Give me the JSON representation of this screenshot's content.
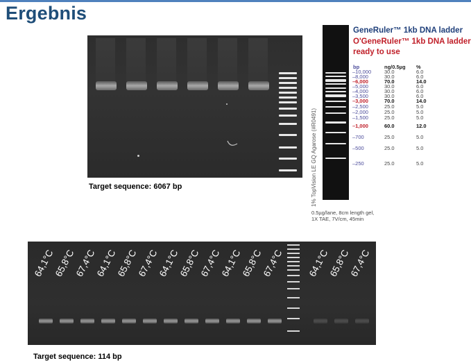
{
  "page": {
    "title": "Ergebnis"
  },
  "gel_top": {
    "caption": "Target sequence: 6067 bp"
  },
  "ladder": {
    "name1": "GeneRuler™ 1kb DNA ladder",
    "name2": "O'GeneRuler™ 1kb DNA ladder,",
    "name3": "ready to use",
    "col_bp": "bp",
    "col_ng": "ng/0.5µg",
    "col_pct": "%",
    "gel_label": "1% TopVision LE GQ Agarose (#R0491)",
    "note1": "0.5µg/lane, 8cm length gel,",
    "note2": "1X TAE, 7V/cm, 45min",
    "rows": [
      {
        "bp": "10,000",
        "ng": "30.0",
        "pct": "6.0",
        "emph": false
      },
      {
        "bp": "8,000",
        "ng": "30.0",
        "pct": "6.0",
        "emph": false
      },
      {
        "bp": "6,000",
        "ng": "70.0",
        "pct": "14.0",
        "emph": true
      },
      {
        "bp": "5,000",
        "ng": "30.0",
        "pct": "6.0",
        "emph": false
      },
      {
        "bp": "4,000",
        "ng": "30.0",
        "pct": "6.0",
        "emph": false
      },
      {
        "bp": "3,500",
        "ng": "30.0",
        "pct": "6.0",
        "emph": false
      },
      {
        "bp": "3,000",
        "ng": "70.0",
        "pct": "14.0",
        "emph": true
      },
      {
        "bp": "2,500",
        "ng": "25.0",
        "pct": "5.0",
        "emph": false
      },
      {
        "bp": "2,000",
        "ng": "25.0",
        "pct": "5.0",
        "emph": false
      },
      {
        "bp": "1,500",
        "ng": "25.0",
        "pct": "5.0",
        "emph": false
      },
      {
        "bp": "1,000",
        "ng": "60.0",
        "pct": "12.0",
        "emph": true
      },
      {
        "bp": "700",
        "ng": "25.0",
        "pct": "5.0",
        "emph": false
      },
      {
        "bp": "500",
        "ng": "25.0",
        "pct": "5.0",
        "emph": false
      },
      {
        "bp": "250",
        "ng": "25.0",
        "pct": "5.0",
        "emph": false
      }
    ]
  },
  "gel_bottom": {
    "caption": "Target sequence: 114 bp",
    "lane_labels": [
      "64,1°C",
      "65,8°C",
      "67,4°C",
      "64,1°C",
      "65,8°C",
      "67,4°C",
      "64,1°C",
      "65,8°C",
      "67,4°C",
      "64,1°C",
      "65,8°C",
      "67,4°C",
      "64,1°C",
      "65,8°C",
      "67,4°C"
    ]
  }
}
